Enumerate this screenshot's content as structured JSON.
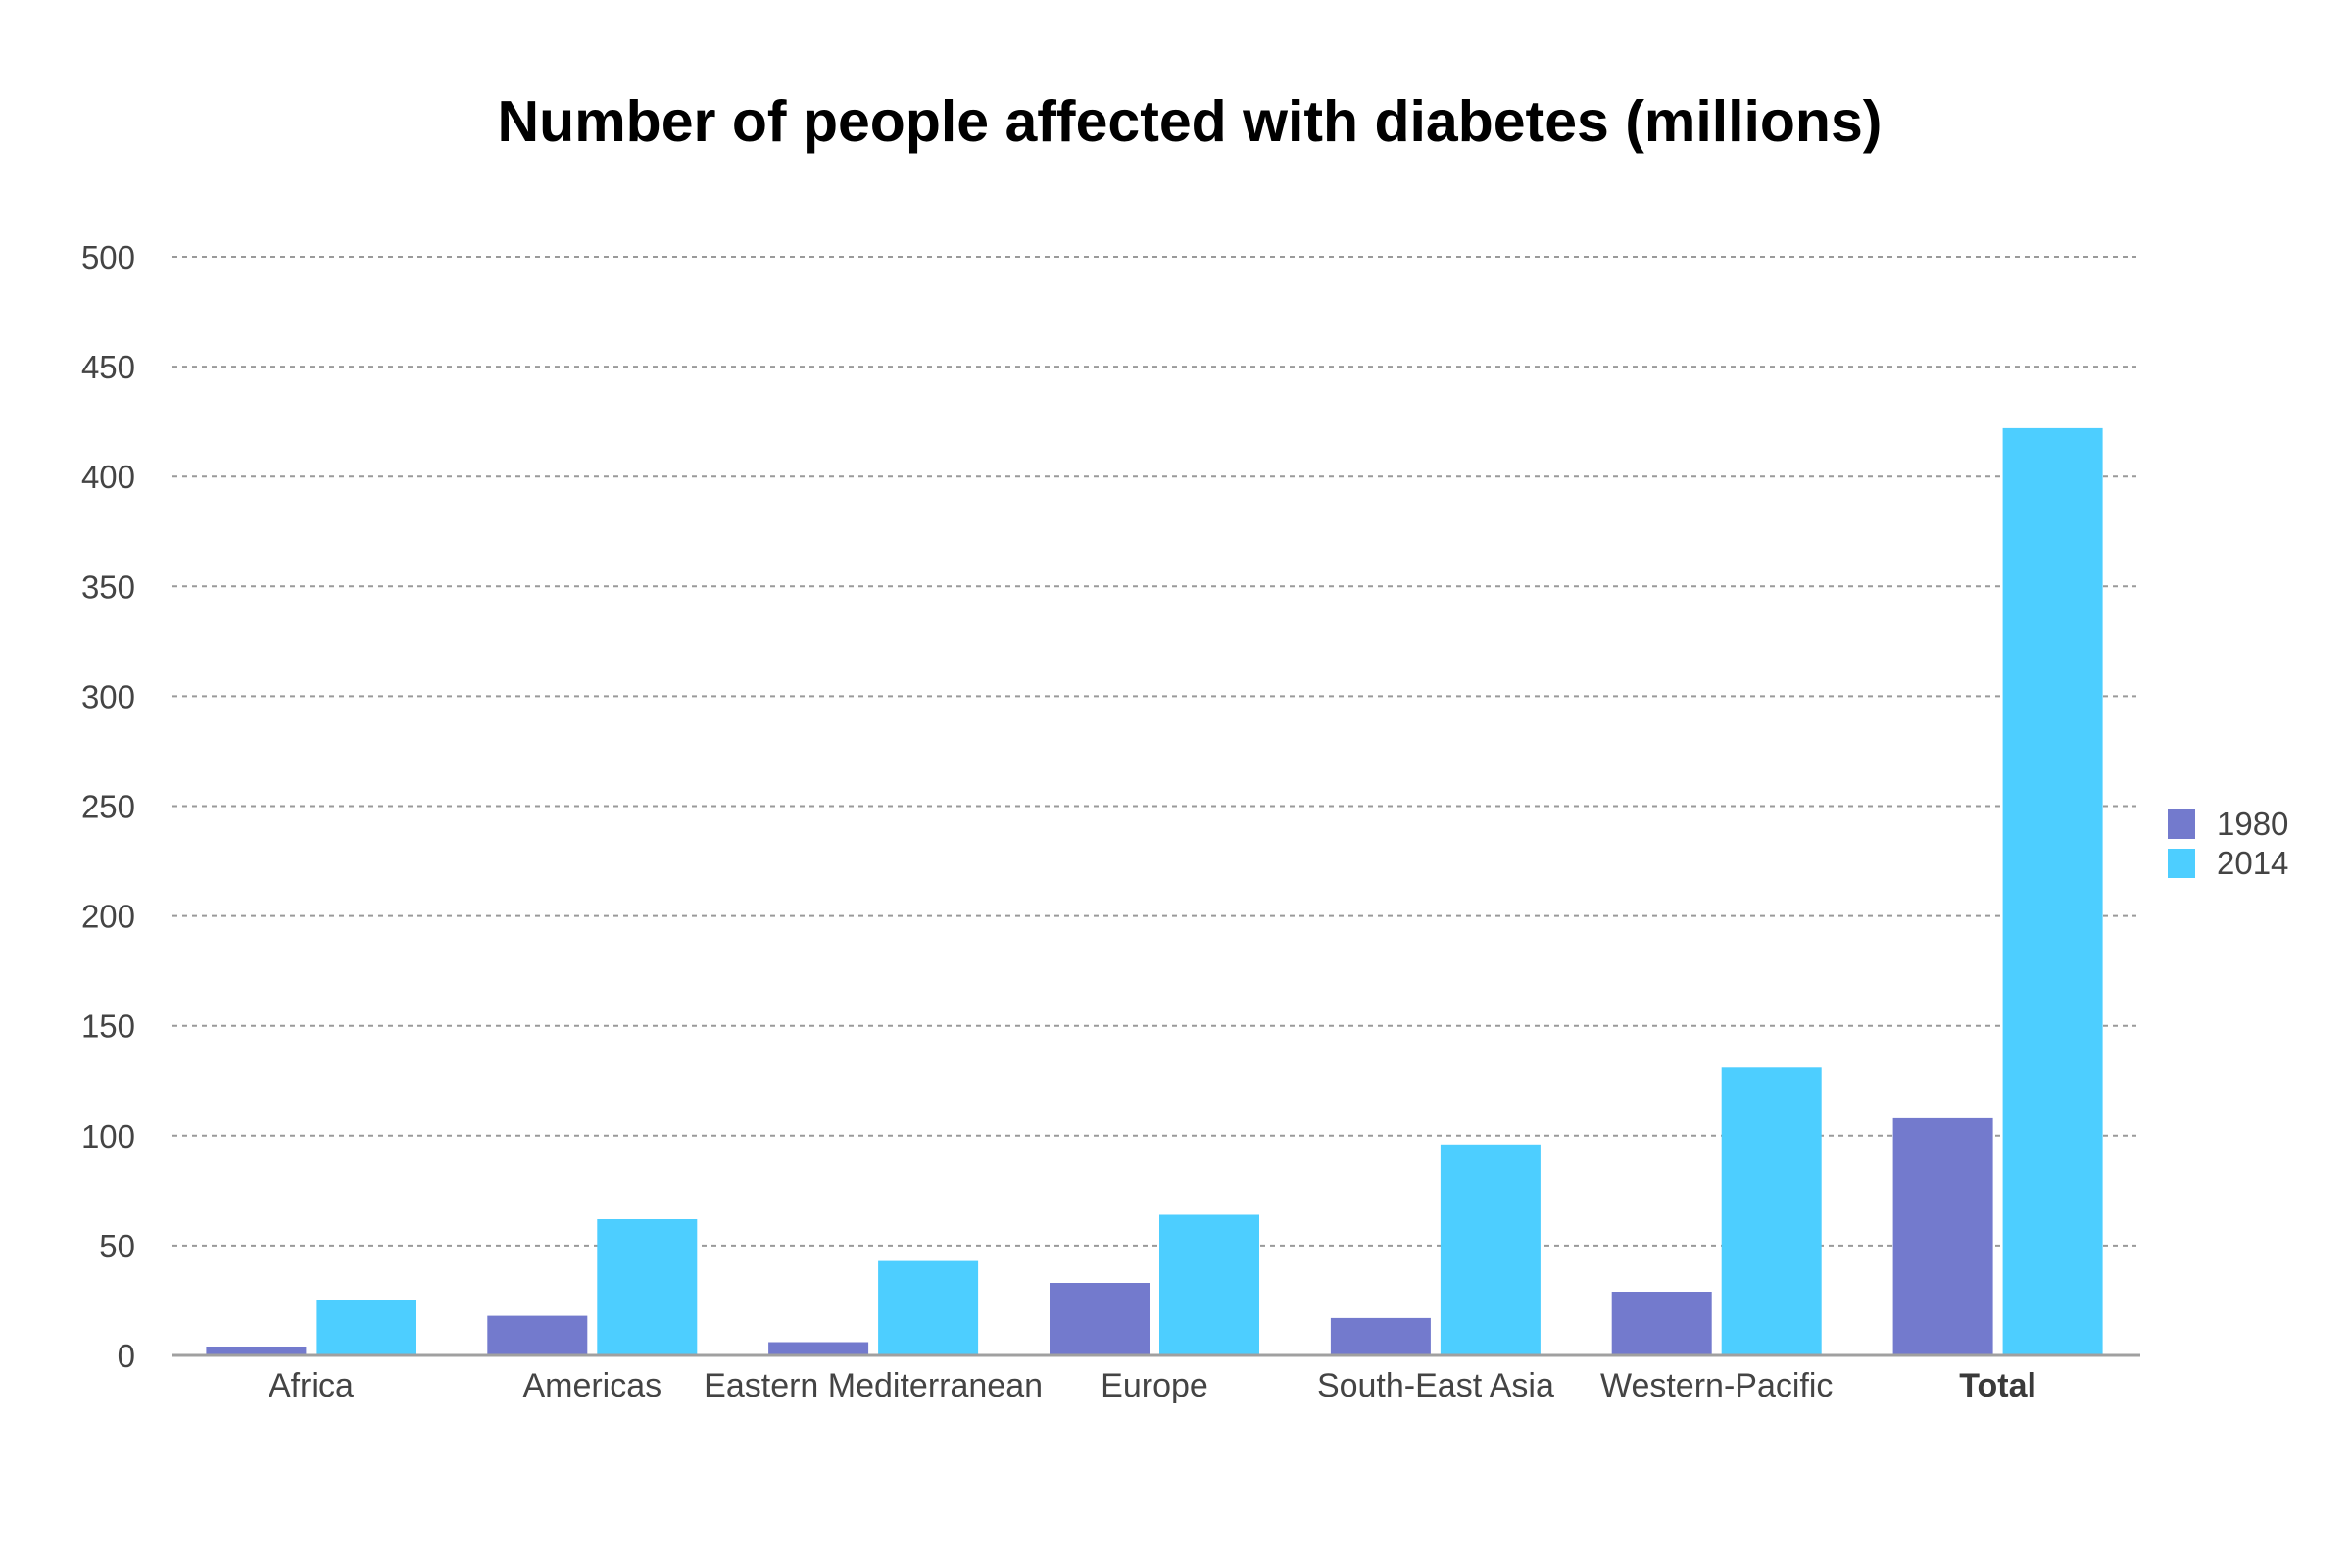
{
  "chart_data": {
    "type": "bar",
    "title": "Number of people affected with diabetes (millions)",
    "xlabel": "",
    "ylabel": "",
    "categories": [
      "Africa",
      "Americas",
      "Eastern Mediterranean",
      "Europe",
      "South-East Asia",
      "Western-Pacific",
      "Total"
    ],
    "bold_categories": [
      "Total"
    ],
    "series": [
      {
        "name": "1980",
        "color": "#737ACD",
        "values": [
          4,
          18,
          6,
          33,
          17,
          29,
          108
        ]
      },
      {
        "name": "2014",
        "color": "#4DCEFF",
        "values": [
          25,
          62,
          43,
          64,
          96,
          131,
          422
        ]
      }
    ],
    "ylim": [
      0,
      500
    ],
    "yticks": [
      0,
      50,
      100,
      150,
      200,
      250,
      300,
      350,
      400,
      450,
      500
    ],
    "grid": true,
    "legend_position": "right"
  }
}
